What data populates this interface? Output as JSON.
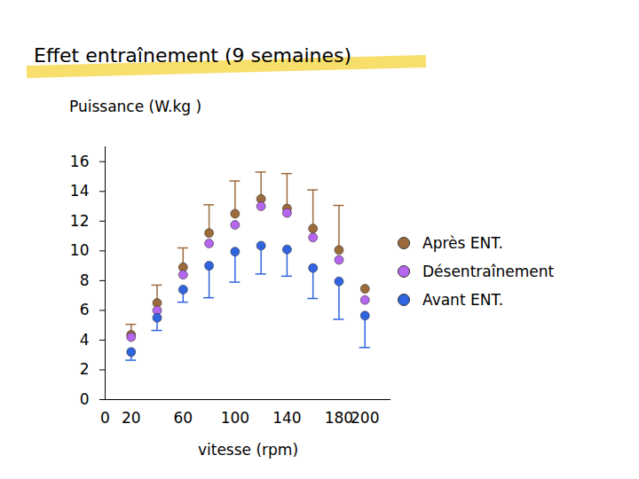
{
  "chart_data": {
    "type": "scatter",
    "title": "Effet entraînement (9 semaines)",
    "x_label": "vitesse (rpm)",
    "y_label": "Puissance (W.kg )",
    "x": [
      20,
      40,
      60,
      80,
      100,
      120,
      140,
      160,
      180,
      200
    ],
    "xlim": [
      0,
      220
    ],
    "xticks": [
      0,
      20,
      60,
      100,
      140,
      180,
      200
    ],
    "ylim": [
      0,
      17
    ],
    "yticks": [
      0,
      2,
      4,
      6,
      8,
      10,
      12,
      14,
      16
    ],
    "legend": "right",
    "series": [
      {
        "name": "Après ENT.",
        "color": "#9c6b3c",
        "values": [
          4.36,
          6.5,
          8.9,
          11.2,
          12.5,
          13.5,
          12.85,
          11.5,
          10.06,
          7.45
        ],
        "error_up": [
          0.7,
          1.2,
          1.3,
          1.9,
          2.2,
          1.8,
          2.35,
          2.6,
          3.0,
          null
        ]
      },
      {
        "name": "Désentraînement",
        "color": "#b566ee",
        "values": [
          4.2,
          6.0,
          8.4,
          10.5,
          11.75,
          13.0,
          12.55,
          10.9,
          9.4,
          6.7
        ]
      },
      {
        "name": "Avant ENT.",
        "color": "#2f63e0",
        "values": [
          3.2,
          5.5,
          7.4,
          9.0,
          9.95,
          10.35,
          10.1,
          8.85,
          7.95,
          5.65
        ],
        "error_down": [
          0.55,
          0.85,
          0.85,
          2.15,
          2.05,
          1.9,
          1.8,
          2.05,
          2.55,
          2.15
        ]
      }
    ]
  }
}
